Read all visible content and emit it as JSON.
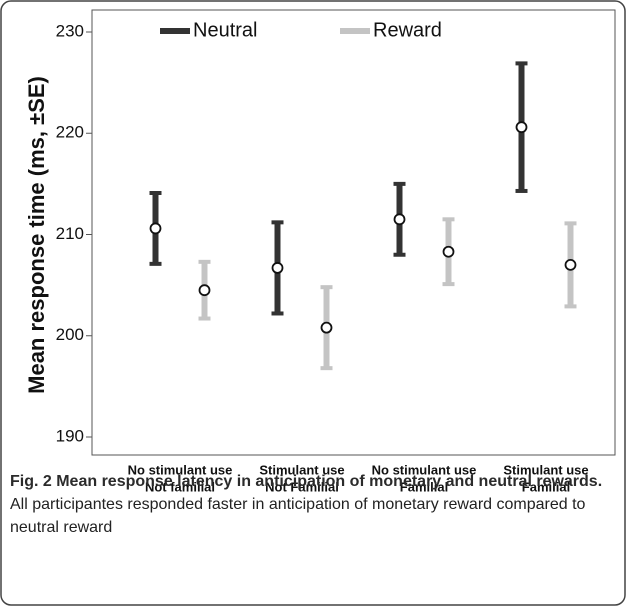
{
  "chart_data": {
    "type": "errorbar",
    "ylabel": "Mean response time (ms, ±SE)",
    "categories": [
      [
        "No stimulant use",
        "Not familial"
      ],
      [
        "Stimulant use",
        "Not Familial"
      ],
      [
        "No stimulant use",
        "Familial"
      ],
      [
        "Stimulant use",
        "Familial"
      ]
    ],
    "series": [
      {
        "name": "Neutral",
        "color": "#333333",
        "values": [
          210.6,
          206.7,
          211.5,
          220.6
        ],
        "errors": [
          3.5,
          4.5,
          3.5,
          6.3
        ]
      },
      {
        "name": "Reward",
        "color": "#c4c4c4",
        "values": [
          204.5,
          200.8,
          208.3,
          207.0
        ],
        "errors": [
          2.8,
          4.0,
          3.2,
          4.1
        ]
      }
    ],
    "ylim": [
      190,
      230
    ],
    "yticks": [
      190,
      200,
      210,
      220,
      230
    ],
    "legend": "top"
  },
  "caption": {
    "label": "Fig. 2 Mean response latency in anticipation of monetary and neutral rewards.",
    "text": "All participantes responded faster in anticipation of monetary reward compared to neutral reward"
  }
}
